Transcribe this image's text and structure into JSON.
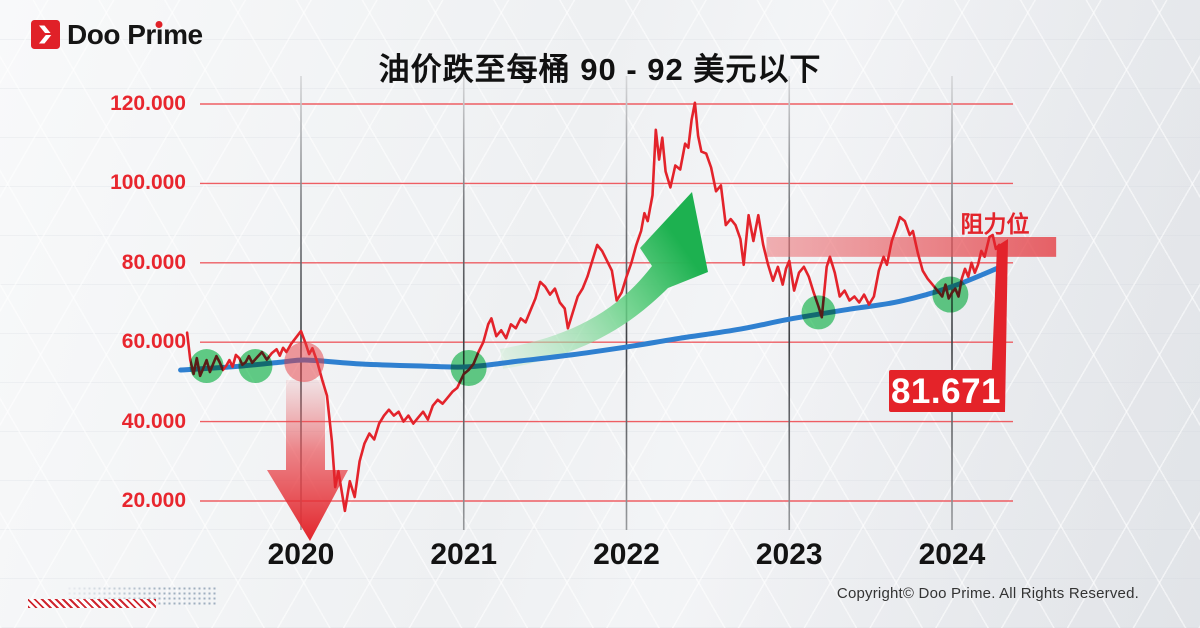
{
  "logo": {
    "wordmark": "Doo Prime",
    "wordmark_parts": [
      "Doo Pr",
      "ı",
      "me"
    ],
    "brand_red": "#e02128"
  },
  "title": "油价跌至每桶 90 - 92 美元以下",
  "footer": {
    "copyright": "Copyright© Doo Prime. All Rights Reserved."
  },
  "chart_data": {
    "type": "line",
    "title": "油价跌至每桶 90 - 92 美元以下",
    "xlabel": "",
    "ylabel": "",
    "xlim": [
      2019.25,
      2024.65
    ],
    "ylim": [
      10,
      125
    ],
    "grid": true,
    "x_axis": {
      "ticks": [
        {
          "value": 2020,
          "label": "2020"
        },
        {
          "value": 2021,
          "label": "2021"
        },
        {
          "value": 2022,
          "label": "2022"
        },
        {
          "value": 2023,
          "label": "2023"
        },
        {
          "value": 2024,
          "label": "2024"
        }
      ]
    },
    "y_axis": {
      "ticks": [
        {
          "value": 120,
          "label": "120.000"
        },
        {
          "value": 100,
          "label": "100.000"
        },
        {
          "value": 80,
          "label": "80.000"
        },
        {
          "value": 60,
          "label": "60.000"
        },
        {
          "value": 40,
          "label": "40.000"
        },
        {
          "value": 20,
          "label": "20.000"
        }
      ]
    },
    "series": [
      {
        "name": "oil-price",
        "color": "#e3232b",
        "points": [
          [
            2019.3,
            62.4
          ],
          [
            2019.32,
            55.5
          ],
          [
            2019.34,
            52.0
          ],
          [
            2019.36,
            56.0
          ],
          [
            2019.38,
            51.5
          ],
          [
            2019.4,
            53.5
          ],
          [
            2019.42,
            55.5
          ],
          [
            2019.44,
            52.5
          ],
          [
            2019.46,
            54.5
          ],
          [
            2019.48,
            56.5
          ],
          [
            2019.5,
            55.0
          ],
          [
            2019.52,
            53.0
          ],
          [
            2019.54,
            54.0
          ],
          [
            2019.56,
            55.5
          ],
          [
            2019.58,
            53.8
          ],
          [
            2019.6,
            56.8
          ],
          [
            2019.62,
            56.0
          ],
          [
            2019.64,
            54.3
          ],
          [
            2019.66,
            55.0
          ],
          [
            2019.68,
            56.5
          ],
          [
            2019.7,
            54.8
          ],
          [
            2019.73,
            56.2
          ],
          [
            2019.76,
            57.5
          ],
          [
            2019.79,
            55.6
          ],
          [
            2019.82,
            57.2
          ],
          [
            2019.85,
            58.2
          ],
          [
            2019.87,
            56.6
          ],
          [
            2019.89,
            58.6
          ],
          [
            2019.91,
            57.5
          ],
          [
            2019.94,
            59.6
          ],
          [
            2019.97,
            61.2
          ],
          [
            2020.0,
            62.8
          ],
          [
            2020.03,
            59.5
          ],
          [
            2020.05,
            57.0
          ],
          [
            2020.07,
            58.5
          ],
          [
            2020.1,
            55.0
          ],
          [
            2020.13,
            50.5
          ],
          [
            2020.16,
            46.5
          ],
          [
            2020.19,
            35.0
          ],
          [
            2020.21,
            23.5
          ],
          [
            2020.23,
            27.5
          ],
          [
            2020.27,
            17.5
          ],
          [
            2020.3,
            25.0
          ],
          [
            2020.33,
            21.0
          ],
          [
            2020.36,
            30.0
          ],
          [
            2020.39,
            34.5
          ],
          [
            2020.42,
            37.0
          ],
          [
            2020.45,
            35.5
          ],
          [
            2020.48,
            39.5
          ],
          [
            2020.51,
            41.5
          ],
          [
            2020.54,
            43.0
          ],
          [
            2020.57,
            41.5
          ],
          [
            2020.6,
            42.5
          ],
          [
            2020.63,
            40.0
          ],
          [
            2020.66,
            41.5
          ],
          [
            2020.69,
            39.5
          ],
          [
            2020.72,
            41.0
          ],
          [
            2020.75,
            42.5
          ],
          [
            2020.78,
            40.5
          ],
          [
            2020.81,
            44.0
          ],
          [
            2020.84,
            45.5
          ],
          [
            2020.87,
            44.5
          ],
          [
            2020.9,
            46.0
          ],
          [
            2020.93,
            47.5
          ],
          [
            2020.96,
            48.5
          ],
          [
            2021.0,
            52.0
          ],
          [
            2021.03,
            53.0
          ],
          [
            2021.06,
            54.5
          ],
          [
            2021.09,
            57.5
          ],
          [
            2021.12,
            60.0
          ],
          [
            2021.15,
            64.5
          ],
          [
            2021.17,
            66.0
          ],
          [
            2021.2,
            61.5
          ],
          [
            2021.23,
            63.0
          ],
          [
            2021.26,
            61.0
          ],
          [
            2021.29,
            64.5
          ],
          [
            2021.32,
            63.5
          ],
          [
            2021.35,
            66.0
          ],
          [
            2021.38,
            65.0
          ],
          [
            2021.41,
            68.0
          ],
          [
            2021.44,
            71.0
          ],
          [
            2021.47,
            75.2
          ],
          [
            2021.5,
            74.0
          ],
          [
            2021.53,
            72.0
          ],
          [
            2021.56,
            73.5
          ],
          [
            2021.59,
            70.0
          ],
          [
            2021.62,
            68.5
          ],
          [
            2021.64,
            63.5
          ],
          [
            2021.67,
            67.5
          ],
          [
            2021.7,
            71.5
          ],
          [
            2021.73,
            73.5
          ],
          [
            2021.76,
            76.5
          ],
          [
            2021.79,
            80.5
          ],
          [
            2021.82,
            84.5
          ],
          [
            2021.85,
            83.0
          ],
          [
            2021.88,
            80.5
          ],
          [
            2021.91,
            78.0
          ],
          [
            2021.94,
            70.5
          ],
          [
            2021.97,
            72.5
          ],
          [
            2022.0,
            76.5
          ],
          [
            2022.03,
            80.0
          ],
          [
            2022.06,
            84.5
          ],
          [
            2022.09,
            88.0
          ],
          [
            2022.11,
            92.5
          ],
          [
            2022.13,
            90.5
          ],
          [
            2022.16,
            97.0
          ],
          [
            2022.18,
            113.5
          ],
          [
            2022.2,
            106.0
          ],
          [
            2022.22,
            111.5
          ],
          [
            2022.24,
            103.0
          ],
          [
            2022.27,
            99.0
          ],
          [
            2022.3,
            104.5
          ],
          [
            2022.33,
            103.5
          ],
          [
            2022.36,
            110.0
          ],
          [
            2022.38,
            109.0
          ],
          [
            2022.4,
            116.0
          ],
          [
            2022.42,
            120.3
          ],
          [
            2022.44,
            112.0
          ],
          [
            2022.46,
            108.0
          ],
          [
            2022.49,
            107.5
          ],
          [
            2022.52,
            104.0
          ],
          [
            2022.55,
            98.0
          ],
          [
            2022.58,
            99.5
          ],
          [
            2022.61,
            89.5
          ],
          [
            2022.64,
            91.0
          ],
          [
            2022.67,
            89.5
          ],
          [
            2022.7,
            86.0
          ],
          [
            2022.72,
            79.5
          ],
          [
            2022.75,
            92.0
          ],
          [
            2022.78,
            85.5
          ],
          [
            2022.81,
            92.0
          ],
          [
            2022.84,
            84.5
          ],
          [
            2022.87,
            79.5
          ],
          [
            2022.9,
            75.5
          ],
          [
            2022.93,
            79.0
          ],
          [
            2022.96,
            74.5
          ],
          [
            2022.98,
            78.5
          ],
          [
            2023.0,
            80.5
          ],
          [
            2023.03,
            73.0
          ],
          [
            2023.06,
            77.5
          ],
          [
            2023.09,
            79.0
          ],
          [
            2023.12,
            76.5
          ],
          [
            2023.15,
            72.5
          ],
          [
            2023.18,
            69.0
          ],
          [
            2023.2,
            66.3
          ],
          [
            2023.23,
            79.0
          ],
          [
            2023.25,
            81.5
          ],
          [
            2023.28,
            77.5
          ],
          [
            2023.31,
            71.5
          ],
          [
            2023.34,
            73.0
          ],
          [
            2023.37,
            70.5
          ],
          [
            2023.4,
            71.5
          ],
          [
            2023.43,
            70.0
          ],
          [
            2023.46,
            72.0
          ],
          [
            2023.49,
            69.5
          ],
          [
            2023.52,
            71.5
          ],
          [
            2023.55,
            78.0
          ],
          [
            2023.58,
            81.5
          ],
          [
            2023.6,
            79.5
          ],
          [
            2023.63,
            85.5
          ],
          [
            2023.66,
            89.0
          ],
          [
            2023.68,
            91.5
          ],
          [
            2023.71,
            90.5
          ],
          [
            2023.74,
            87.0
          ],
          [
            2023.76,
            88.0
          ],
          [
            2023.79,
            82.5
          ],
          [
            2023.82,
            78.0
          ],
          [
            2023.85,
            76.0
          ],
          [
            2023.88,
            74.5
          ],
          [
            2023.91,
            73.0
          ],
          [
            2023.94,
            71.5
          ],
          [
            2023.96,
            74.5
          ],
          [
            2023.98,
            71.0
          ],
          [
            2024.0,
            72.5
          ],
          [
            2024.02,
            73.5
          ],
          [
            2024.04,
            71.5
          ],
          [
            2024.06,
            76.0
          ],
          [
            2024.08,
            78.5
          ],
          [
            2024.1,
            76.5
          ],
          [
            2024.12,
            80.0
          ],
          [
            2024.14,
            77.5
          ],
          [
            2024.16,
            79.5
          ],
          [
            2024.18,
            83.0
          ],
          [
            2024.2,
            81.5
          ],
          [
            2024.23,
            86.5
          ],
          [
            2024.25,
            87.0
          ],
          [
            2024.27,
            83.5
          ],
          [
            2024.29,
            84.5
          ],
          [
            2024.31,
            84.0
          ]
        ]
      },
      {
        "name": "moving-average",
        "color": "#2f80d0",
        "points": [
          [
            2019.26,
            53.0
          ],
          [
            2019.58,
            53.8
          ],
          [
            2019.88,
            55.0
          ],
          [
            2020.04,
            55.5
          ],
          [
            2020.37,
            54.5
          ],
          [
            2020.74,
            54.0
          ],
          [
            2021.03,
            53.8
          ],
          [
            2021.35,
            55.3
          ],
          [
            2021.66,
            56.8
          ],
          [
            2022.0,
            58.8
          ],
          [
            2022.33,
            61.0
          ],
          [
            2022.7,
            63.3
          ],
          [
            2023.0,
            65.8
          ],
          [
            2023.37,
            68.3
          ],
          [
            2023.68,
            70.3
          ],
          [
            2024.0,
            74.0
          ],
          [
            2024.3,
            79.0
          ]
        ]
      }
    ],
    "markers": [
      {
        "shape": "circle",
        "color": "green",
        "year": 2019.42,
        "price": 54.0,
        "r": 17
      },
      {
        "shape": "circle",
        "color": "green",
        "year": 2019.72,
        "price": 54.0,
        "r": 17
      },
      {
        "shape": "circle",
        "color": "green",
        "year": 2021.03,
        "price": 53.5,
        "r": 18
      },
      {
        "shape": "circle",
        "color": "green",
        "year": 2023.18,
        "price": 67.5,
        "r": 17
      },
      {
        "shape": "circle",
        "color": "green",
        "year": 2023.99,
        "price": 72.0,
        "r": 18
      },
      {
        "shape": "circle",
        "color": "red",
        "year": 2020.02,
        "price": 55.0,
        "r": 20
      }
    ],
    "resistance_zone": {
      "label": "阻力位",
      "year_start": 2022.86,
      "year_end": 2024.64,
      "price_top": 86.5,
      "price_bottom": 81.5
    },
    "last_price_label": "81.671",
    "annotations": [
      {
        "id": "crash-arrow",
        "type": "arrow-down",
        "color": "#e2252b",
        "year": 2020.05
      },
      {
        "id": "rally-arrow",
        "type": "arrow-up",
        "color": "#1fb150",
        "from_year": 2021.26,
        "to_year": 2022.42
      },
      {
        "id": "drop-connector",
        "type": "drop-wedge",
        "year": 2024.31,
        "from_price": 84.2
      }
    ]
  }
}
